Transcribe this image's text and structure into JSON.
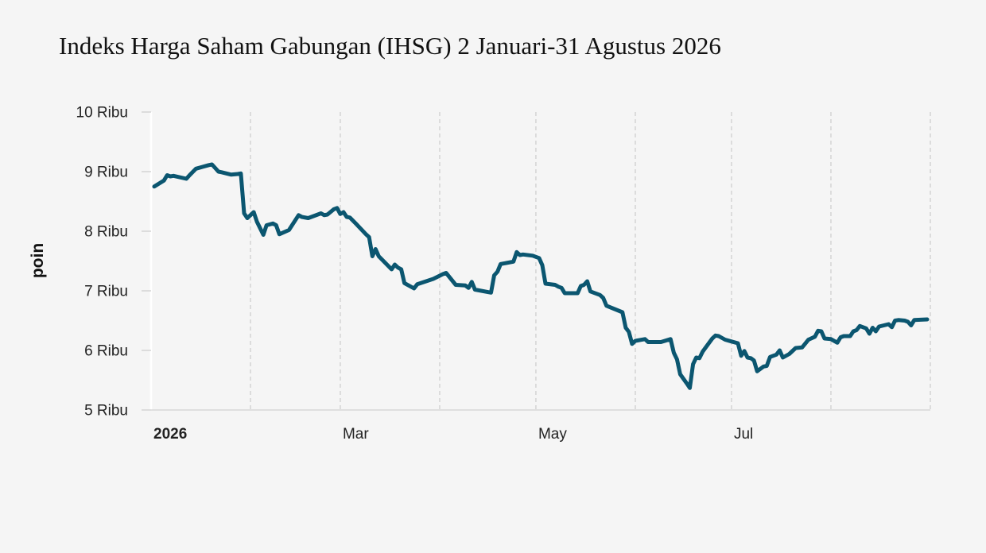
{
  "chart_data": {
    "type": "line",
    "title": "Indeks Harga Saham Gabungan (IHSG) 2 Januari-31 Agustus 2026",
    "ylabel": "poin",
    "xlabel": "",
    "ylim": [
      5000,
      10000
    ],
    "xlim": [
      "2026-01-01",
      "2026-08-31"
    ],
    "grid": "vertical dashed",
    "y_ticks": [
      {
        "value": 10000,
        "label": "10 Ribu"
      },
      {
        "value": 9000,
        "label": "9 Ribu"
      },
      {
        "value": 8000,
        "label": "8 Ribu"
      },
      {
        "value": 7000,
        "label": "7 Ribu"
      },
      {
        "value": 6000,
        "label": "6 Ribu"
      },
      {
        "value": 5000,
        "label": "5 Ribu"
      }
    ],
    "x_ticks": [
      {
        "date": "2026-01-01",
        "label": "2026",
        "bold": true
      },
      {
        "date": "2026-03-01",
        "label": "Mar"
      },
      {
        "date": "2026-05-01",
        "label": "May"
      },
      {
        "date": "2026-07-01",
        "label": "Jul"
      }
    ],
    "x_gridlines": [
      "2026-02-01",
      "2026-03-01",
      "2026-04-01",
      "2026-05-01",
      "2026-06-01",
      "2026-07-01",
      "2026-08-01",
      "2026-09-01"
    ],
    "line_color": "#0b5670",
    "series": [
      {
        "points": [
          [
            "2026-01-02",
            8750
          ],
          [
            "2026-01-05",
            8850
          ],
          [
            "2026-01-06",
            8940
          ],
          [
            "2026-01-07",
            8920
          ],
          [
            "2026-01-08",
            8930
          ],
          [
            "2026-01-12",
            8880
          ],
          [
            "2026-01-13",
            8940
          ],
          [
            "2026-01-15",
            9050
          ],
          [
            "2026-01-19",
            9110
          ],
          [
            "2026-01-20",
            9120
          ],
          [
            "2026-01-21",
            9060
          ],
          [
            "2026-01-22",
            9000
          ],
          [
            "2026-01-23",
            8990
          ],
          [
            "2026-01-26",
            8950
          ],
          [
            "2026-01-28",
            8960
          ],
          [
            "2026-01-29",
            8970
          ],
          [
            "2026-01-30",
            8300
          ],
          [
            "2026-01-31",
            8220
          ],
          [
            "2026-02-02",
            8320
          ],
          [
            "2026-02-03",
            8160
          ],
          [
            "2026-02-05",
            7940
          ],
          [
            "2026-02-06",
            8100
          ],
          [
            "2026-02-08",
            8130
          ],
          [
            "2026-02-09",
            8100
          ],
          [
            "2026-02-10",
            7950
          ],
          [
            "2026-02-13",
            8020
          ],
          [
            "2026-02-16",
            8270
          ],
          [
            "2026-02-17",
            8240
          ],
          [
            "2026-02-19",
            8220
          ],
          [
            "2026-02-23",
            8300
          ],
          [
            "2026-02-24",
            8270
          ],
          [
            "2026-02-25",
            8280
          ],
          [
            "2026-02-27",
            8370
          ],
          [
            "2026-02-28",
            8390
          ],
          [
            "2026-03-01",
            8290
          ],
          [
            "2026-03-02",
            8320
          ],
          [
            "2026-03-03",
            8240
          ],
          [
            "2026-03-04",
            8230
          ],
          [
            "2026-03-06",
            8120
          ],
          [
            "2026-03-09",
            7950
          ],
          [
            "2026-03-10",
            7900
          ],
          [
            "2026-03-11",
            7580
          ],
          [
            "2026-03-12",
            7700
          ],
          [
            "2026-03-13",
            7580
          ],
          [
            "2026-03-17",
            7360
          ],
          [
            "2026-03-18",
            7440
          ],
          [
            "2026-03-19",
            7390
          ],
          [
            "2026-03-20",
            7360
          ],
          [
            "2026-03-21",
            7130
          ],
          [
            "2026-03-24",
            7040
          ],
          [
            "2026-03-25",
            7110
          ],
          [
            "2026-03-30",
            7200
          ],
          [
            "2026-04-02",
            7280
          ],
          [
            "2026-04-03",
            7300
          ],
          [
            "2026-04-06",
            7100
          ],
          [
            "2026-04-09",
            7090
          ],
          [
            "2026-04-10",
            7050
          ],
          [
            "2026-04-11",
            7150
          ],
          [
            "2026-04-12",
            7020
          ],
          [
            "2026-04-17",
            6970
          ],
          [
            "2026-04-18",
            7260
          ],
          [
            "2026-04-19",
            7320
          ],
          [
            "2026-04-20",
            7450
          ],
          [
            "2026-04-24",
            7490
          ],
          [
            "2026-04-25",
            7650
          ],
          [
            "2026-04-26",
            7600
          ],
          [
            "2026-04-27",
            7610
          ],
          [
            "2026-04-30",
            7590
          ],
          [
            "2026-05-02",
            7550
          ],
          [
            "2026-05-03",
            7430
          ],
          [
            "2026-05-04",
            7120
          ],
          [
            "2026-05-07",
            7100
          ],
          [
            "2026-05-08",
            7070
          ],
          [
            "2026-05-09",
            7050
          ],
          [
            "2026-05-10",
            6960
          ],
          [
            "2026-05-14",
            6960
          ],
          [
            "2026-05-15",
            7080
          ],
          [
            "2026-05-16",
            7100
          ],
          [
            "2026-05-17",
            7160
          ],
          [
            "2026-05-18",
            6990
          ],
          [
            "2026-05-21",
            6930
          ],
          [
            "2026-05-22",
            6880
          ],
          [
            "2026-05-23",
            6750
          ],
          [
            "2026-05-28",
            6640
          ],
          [
            "2026-05-29",
            6380
          ],
          [
            "2026-05-30",
            6310
          ],
          [
            "2026-05-31",
            6110
          ],
          [
            "2026-06-01",
            6160
          ],
          [
            "2026-06-04",
            6190
          ],
          [
            "2026-06-05",
            6140
          ],
          [
            "2026-06-09",
            6140
          ],
          [
            "2026-06-12",
            6190
          ],
          [
            "2026-06-13",
            5960
          ],
          [
            "2026-06-14",
            5850
          ],
          [
            "2026-06-15",
            5600
          ],
          [
            "2026-06-17",
            5450
          ],
          [
            "2026-06-18",
            5370
          ],
          [
            "2026-06-19",
            5770
          ],
          [
            "2026-06-20",
            5880
          ],
          [
            "2026-06-21",
            5870
          ],
          [
            "2026-06-22",
            5980
          ],
          [
            "2026-06-25",
            6200
          ],
          [
            "2026-06-26",
            6250
          ],
          [
            "2026-06-27",
            6240
          ],
          [
            "2026-06-29",
            6180
          ],
          [
            "2026-07-01",
            6150
          ],
          [
            "2026-07-03",
            6120
          ],
          [
            "2026-07-04",
            5910
          ],
          [
            "2026-07-05",
            5990
          ],
          [
            "2026-07-06",
            5880
          ],
          [
            "2026-07-07",
            5870
          ],
          [
            "2026-07-08",
            5830
          ],
          [
            "2026-07-09",
            5650
          ],
          [
            "2026-07-11",
            5730
          ],
          [
            "2026-07-12",
            5740
          ],
          [
            "2026-07-13",
            5890
          ],
          [
            "2026-07-15",
            5930
          ],
          [
            "2026-07-16",
            6000
          ],
          [
            "2026-07-17",
            5880
          ],
          [
            "2026-07-19",
            5940
          ],
          [
            "2026-07-21",
            6040
          ],
          [
            "2026-07-23",
            6050
          ],
          [
            "2026-07-25",
            6180
          ],
          [
            "2026-07-27",
            6230
          ],
          [
            "2026-07-28",
            6330
          ],
          [
            "2026-07-29",
            6320
          ],
          [
            "2026-07-30",
            6200
          ],
          [
            "2026-08-01",
            6190
          ],
          [
            "2026-08-03",
            6130
          ],
          [
            "2026-08-04",
            6220
          ],
          [
            "2026-08-05",
            6240
          ],
          [
            "2026-08-07",
            6240
          ],
          [
            "2026-08-08",
            6320
          ],
          [
            "2026-08-09",
            6340
          ],
          [
            "2026-08-10",
            6410
          ],
          [
            "2026-08-12",
            6370
          ],
          [
            "2026-08-13",
            6280
          ],
          [
            "2026-08-14",
            6380
          ],
          [
            "2026-08-15",
            6320
          ],
          [
            "2026-08-16",
            6400
          ],
          [
            "2026-08-19",
            6440
          ],
          [
            "2026-08-20",
            6390
          ],
          [
            "2026-08-21",
            6500
          ],
          [
            "2026-08-22",
            6510
          ],
          [
            "2026-08-24",
            6500
          ],
          [
            "2026-08-25",
            6480
          ],
          [
            "2026-08-26",
            6420
          ],
          [
            "2026-08-27",
            6510
          ],
          [
            "2026-08-31",
            6520
          ]
        ]
      }
    ]
  }
}
